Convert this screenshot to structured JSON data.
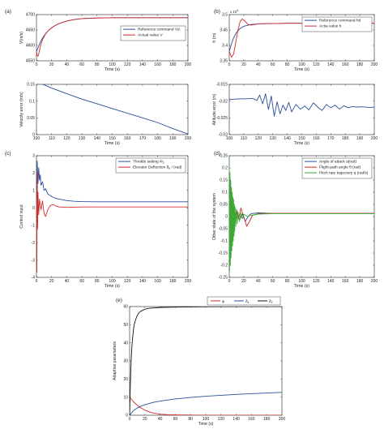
{
  "chart_data": [
    {
      "id": "top-left",
      "type": "line",
      "xlabel": "Time (s)",
      "ylabel": "V(m/s)",
      "xlim": [
        0,
        200
      ],
      "ylim": [
        4550,
        4700
      ],
      "xticks": [
        "0",
        "20",
        "40",
        "60",
        "80",
        "100",
        "120",
        "140",
        "160",
        "180",
        "200"
      ],
      "yticks": [
        "4550",
        "4600",
        "4650",
        "4700"
      ],
      "legend_position": "right-middle",
      "series": [
        {
          "name": "Reference command Vd",
          "color": "#2b4e9a",
          "x": [
            0,
            2,
            5,
            8,
            12,
            16,
            20,
            25,
            30,
            40,
            50,
            60,
            80,
            100,
            130,
            160,
            200
          ],
          "y": [
            4580,
            4592,
            4610,
            4624,
            4638,
            4649,
            4657,
            4665,
            4671,
            4679,
            4684,
            4687,
            4689,
            4690,
            4690,
            4690,
            4690
          ]
        },
        {
          "name": "Actual value V",
          "color": "#d42a2a",
          "x": [
            0,
            1,
            2,
            3,
            4,
            6,
            8,
            12,
            16,
            20,
            25,
            30,
            40,
            50,
            60,
            80,
            100,
            130,
            160,
            200
          ],
          "y": [
            4580,
            4568,
            4565,
            4572,
            4585,
            4604,
            4619,
            4637,
            4649,
            4657,
            4665,
            4671,
            4679,
            4684,
            4687,
            4689,
            4690,
            4690,
            4690,
            4690
          ]
        }
      ]
    },
    {
      "id": "top-right",
      "label": "(b)",
      "type": "line",
      "xlabel": "Time (s)",
      "ylabel": "h (m)",
      "xlim": [
        0,
        200
      ],
      "ylim": [
        3.35,
        3.5
      ],
      "y_multiplier": "x 10",
      "y_multiplier_exp": "4",
      "xticks": [
        "0",
        "20",
        "40",
        "60",
        "80",
        "100",
        "120",
        "140",
        "160",
        "180",
        "200"
      ],
      "yticks": [
        "3.35",
        "3.4",
        "3.45",
        "3.5"
      ],
      "legend_position": "top-right",
      "series": [
        {
          "name": "Reference command hd",
          "color": "#2b4e9a",
          "x": [
            0,
            3,
            6,
            10,
            15,
            20,
            30,
            40,
            60,
            80,
            100,
            150,
            200
          ],
          "y": [
            3.38,
            3.405,
            3.425,
            3.442,
            3.455,
            3.462,
            3.468,
            3.47,
            3.471,
            3.472,
            3.472,
            3.472,
            3.472
          ]
        },
        {
          "name": "Actia value h",
          "color": "#d42a2a",
          "x": [
            0,
            3,
            6,
            9,
            12,
            15,
            18,
            22,
            26,
            30,
            35,
            40,
            50,
            60,
            80,
            100,
            150,
            200
          ],
          "y": [
            3.38,
            3.362,
            3.372,
            3.41,
            3.45,
            3.478,
            3.486,
            3.478,
            3.468,
            3.466,
            3.468,
            3.47,
            3.471,
            3.471,
            3.472,
            3.472,
            3.472,
            3.472
          ]
        }
      ]
    },
    {
      "id": "middle-left",
      "type": "line",
      "xlabel": "Time (s)",
      "ylabel": "Velocity error (m/s)",
      "xlim": [
        100,
        200
      ],
      "ylim": [
        0,
        0.15
      ],
      "xticks": [
        "100",
        "110",
        "120",
        "130",
        "140",
        "150",
        "160",
        "170",
        "180",
        "190",
        "200"
      ],
      "yticks": [
        "0",
        "0.05",
        "0.1",
        "0.15"
      ],
      "series": [
        {
          "name": "",
          "color": "#2b4e9a",
          "x": [
            100,
            110,
            120,
            130,
            140,
            150,
            160,
            170,
            180,
            190,
            200
          ],
          "y": [
            0.158,
            0.139,
            0.122,
            0.106,
            0.092,
            0.078,
            0.064,
            0.05,
            0.036,
            0.018,
            0.002
          ]
        }
      ]
    },
    {
      "id": "middle-right",
      "type": "line",
      "xlabel": "Time (s)",
      "ylabel": "Altitude error (m)",
      "xlim": [
        100,
        200
      ],
      "ylim": [
        -0.03,
        -0.015
      ],
      "xticks": [
        "100",
        "110",
        "120",
        "130",
        "140",
        "150",
        "160",
        "170",
        "180",
        "190",
        "200"
      ],
      "yticks": [
        "-0.015",
        "-0.02",
        "-0.025",
        "-0.03"
      ],
      "series": [
        {
          "name": "",
          "color": "#2b4e9a",
          "x": [
            100,
            104,
            108,
            112,
            116,
            119,
            121,
            123,
            125,
            127,
            129,
            131,
            133,
            135,
            137,
            139,
            141,
            143,
            146,
            149,
            152,
            155,
            158,
            161,
            164,
            167,
            170,
            173,
            176,
            179,
            182,
            185,
            188,
            191,
            194,
            197,
            200
          ],
          "y": [
            -0.0195,
            -0.0194,
            -0.0193,
            -0.0193,
            -0.0192,
            -0.0198,
            -0.0182,
            -0.0208,
            -0.0178,
            -0.0225,
            -0.0185,
            -0.0245,
            -0.0202,
            -0.0238,
            -0.0212,
            -0.0228,
            -0.0204,
            -0.0232,
            -0.021,
            -0.0224,
            -0.0215,
            -0.0226,
            -0.0205,
            -0.0218,
            -0.0228,
            -0.021,
            -0.022,
            -0.0212,
            -0.0224,
            -0.0214,
            -0.022,
            -0.0216,
            -0.0218,
            -0.0217,
            -0.0218,
            -0.0219,
            -0.0218
          ]
        }
      ]
    },
    {
      "id": "bottom-left",
      "label": "(c)",
      "type": "line",
      "xlabel": "Time (s)",
      "ylabel": "Control input",
      "xlim": [
        0,
        200
      ],
      "ylim": [
        -4,
        3
      ],
      "xticks": [
        "0",
        "20",
        "40",
        "60",
        "80",
        "100",
        "120",
        "140",
        "160",
        "180",
        "200"
      ],
      "yticks": [
        "-4",
        "-3",
        "-2",
        "-1",
        "0",
        "1",
        "2",
        "3"
      ],
      "legend_position": "top-right",
      "series": [
        {
          "name": "Throttle setting Φc",
          "color": "#2b4e9a",
          "x": [
            0,
            1,
            2,
            3,
            4,
            5,
            6,
            8,
            10,
            12,
            15,
            20,
            25,
            30,
            40,
            50,
            60,
            80,
            100,
            150,
            200
          ],
          "y": [
            0.5,
            2.7,
            1.4,
            2.3,
            1.6,
            1.9,
            1.3,
            1.5,
            1.0,
            1.1,
            0.8,
            0.65,
            0.55,
            0.5,
            0.42,
            0.38,
            0.36,
            0.35,
            0.35,
            0.35,
            0.35
          ]
        },
        {
          "name": "Elevator Deflection δe / (rad)",
          "color": "#d42a2a",
          "x": [
            0,
            0.5,
            1,
            1.5,
            2,
            3,
            4,
            6,
            8,
            10,
            12,
            15,
            18,
            22,
            26,
            30,
            40,
            50,
            60,
            100,
            150,
            200
          ],
          "y": [
            0,
            -3.7,
            2.1,
            -1.2,
            0.9,
            -0.4,
            0.5,
            -0.1,
            0.4,
            -0.3,
            -0.5,
            -0.1,
            0.12,
            0.2,
            0.1,
            0.05,
            0.03,
            0.04,
            0.05,
            0.05,
            0.05,
            0.05
          ]
        }
      ]
    },
    {
      "id": "bottom-right",
      "label": "(d)",
      "type": "line",
      "xlabel": "Time (s)",
      "ylabel": "Other state of the system",
      "xlim": [
        0,
        200
      ],
      "ylim": [
        -0.25,
        0.25
      ],
      "xticks": [
        "0",
        "20",
        "40",
        "60",
        "80",
        "100",
        "120",
        "140",
        "160",
        "180",
        "200"
      ],
      "yticks": [
        "-0.25",
        "-0.2",
        "-0.15",
        "-0.1",
        "-0.05",
        "0",
        "0.05",
        "0.1",
        "0.15",
        "0.2",
        "0.25"
      ],
      "legend_position": "top-right",
      "series": [
        {
          "name": "Angle of attack α(rad)",
          "color": "#2b4e9a",
          "x": [
            0,
            2,
            4,
            6,
            8,
            10,
            14,
            18,
            22,
            26,
            30,
            40,
            60,
            100,
            150,
            200
          ],
          "y": [
            0.02,
            0.06,
            -0.02,
            0.04,
            -0.01,
            0.02,
            -0.015,
            0.01,
            -0.02,
            0.0,
            0.012,
            0.015,
            0.013,
            0.013,
            0.013,
            0.013
          ]
        },
        {
          "name": "Flight-path angle θ (rad)",
          "color": "#d42a2a",
          "x": [
            0,
            2,
            4,
            6,
            8,
            10,
            13,
            16,
            20,
            24,
            28,
            32,
            40,
            50,
            60,
            100,
            150,
            200
          ],
          "y": [
            0.0,
            0.02,
            -0.03,
            0.04,
            -0.02,
            0.03,
            -0.01,
            0.035,
            0.0,
            -0.04,
            -0.02,
            0.005,
            0.012,
            0.013,
            0.013,
            0.013,
            0.013,
            0.013
          ]
        },
        {
          "name": "Pitch rate trajectory q (rad/s)",
          "color": "#3aaa35",
          "x": [
            0,
            0.5,
            1,
            1.5,
            2,
            2.5,
            3,
            3.5,
            4,
            4.5,
            5,
            5.5,
            6,
            6.5,
            7,
            7.5,
            8,
            9,
            10,
            11,
            12,
            14,
            16,
            18,
            20,
            25,
            30,
            40,
            60,
            100,
            150,
            200
          ],
          "y": [
            0.25,
            -0.22,
            0.18,
            -0.2,
            0.15,
            -0.17,
            0.12,
            -0.14,
            0.1,
            -0.12,
            0.08,
            -0.1,
            0.07,
            -0.08,
            0.05,
            -0.06,
            0.04,
            -0.04,
            0.03,
            -0.03,
            0.02,
            -0.02,
            0.015,
            -0.01,
            0.01,
            0.0,
            0.005,
            0.01,
            0.012,
            0.012,
            0.012,
            0.012
          ]
        }
      ]
    },
    {
      "id": "bottom-center",
      "label": "(e)",
      "type": "line",
      "xlabel": "Time (s)",
      "ylabel": "Adaptive parameters",
      "xlim": [
        0,
        200
      ],
      "ylim": [
        0,
        60
      ],
      "xticks": [
        "0",
        "20",
        "40",
        "60",
        "80",
        "100",
        "120",
        "140",
        "160",
        "180",
        "200"
      ],
      "yticks": [
        "0",
        "10",
        "20",
        "30",
        "40",
        "50",
        "60"
      ],
      "legend_position": "top-right",
      "legend_layout": "horizontal",
      "series": [
        {
          "name": "φ",
          "color": "#d42a2a",
          "x": [
            0,
            5,
            10,
            15,
            20,
            25,
            30,
            40,
            50,
            60,
            80,
            100,
            150,
            200
          ],
          "y": [
            10,
            7.5,
            5.5,
            4,
            2.8,
            2,
            1.3,
            0.6,
            0.3,
            0.2,
            0.1,
            0.05,
            0.0,
            0.0
          ]
        },
        {
          "name": "δ1",
          "color": "#2b4e9a",
          "x": [
            0,
            5,
            10,
            15,
            20,
            30,
            40,
            60,
            80,
            100,
            120,
            140,
            160,
            180,
            200
          ],
          "y": [
            0,
            2.5,
            4,
            5,
            5.8,
            7,
            7.8,
            9,
            9.8,
            10.5,
            11,
            11.5,
            11.9,
            12.3,
            12.6
          ]
        },
        {
          "name": "δ2",
          "color": "#111111",
          "x": [
            0,
            1,
            2,
            3,
            4,
            5,
            6,
            8,
            10,
            12,
            15,
            20,
            25,
            30,
            40,
            60,
            80,
            100,
            150,
            200
          ],
          "y": [
            0,
            18,
            30,
            38,
            43,
            47,
            50,
            53,
            55,
            56.5,
            57.5,
            58.5,
            59,
            59.2,
            59.5,
            59.7,
            59.8,
            59.9,
            60,
            60
          ]
        }
      ]
    }
  ],
  "panel_labels": [
    "(a)",
    "(b)",
    "(c)",
    "(d)",
    "(e)"
  ]
}
